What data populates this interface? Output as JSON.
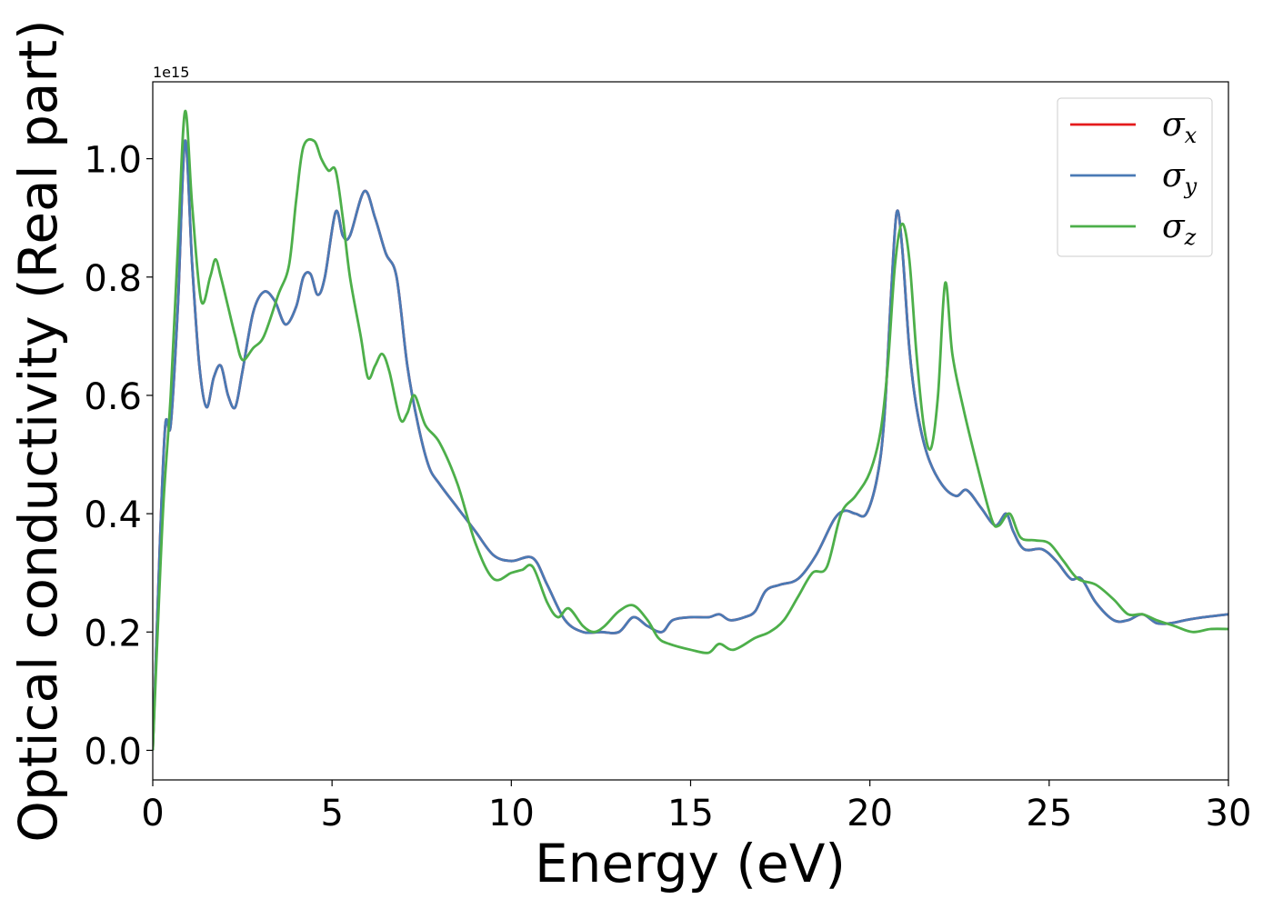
{
  "chart_data": {
    "type": "line",
    "xlabel": "Energy (eV)",
    "ylabel": "Optical conductivity (Real part)",
    "y_offset_label": "1e15",
    "xlim": [
      0,
      30
    ],
    "ylim": [
      -0.05,
      1.13
    ],
    "x_ticks": [
      0,
      5,
      10,
      15,
      20,
      25,
      30
    ],
    "x_tick_labels": [
      "0",
      "5",
      "10",
      "15",
      "20",
      "25",
      "30"
    ],
    "y_ticks": [
      0.0,
      0.2,
      0.4,
      0.6,
      0.8,
      1.0
    ],
    "y_tick_labels": [
      "0.0",
      "0.2",
      "0.4",
      "0.6",
      "0.8",
      "1.0"
    ],
    "grid": false,
    "legend_position": "top-right",
    "series": [
      {
        "name": "σx",
        "label_base": "σ",
        "label_sub": "x",
        "color": "#e41a1c",
        "x": [
          0,
          0.2,
          0.35,
          0.5,
          0.7,
          0.9,
          1.1,
          1.3,
          1.5,
          1.7,
          1.9,
          2.1,
          2.3,
          2.5,
          2.8,
          3.1,
          3.4,
          3.7,
          4.0,
          4.2,
          4.4,
          4.6,
          4.8,
          5.1,
          5.3,
          5.5,
          5.9,
          6.2,
          6.5,
          6.8,
          7.1,
          7.4,
          7.7,
          8.0,
          8.5,
          9.0,
          9.5,
          10.0,
          10.6,
          11.0,
          11.5,
          12.0,
          12.5,
          13.0,
          13.4,
          13.8,
          14.2,
          14.5,
          15.0,
          15.5,
          15.8,
          16.1,
          16.5,
          16.8,
          17.1,
          17.5,
          18.0,
          18.5,
          19.0,
          19.3,
          19.6,
          19.9,
          20.2,
          20.4,
          20.6,
          20.75,
          20.9,
          21.1,
          21.3,
          21.6,
          22.0,
          22.4,
          22.7,
          23.1,
          23.5,
          23.8,
          24.0,
          24.3,
          24.8,
          25.2,
          25.6,
          25.9,
          26.3,
          26.8,
          27.2,
          27.6,
          28.0,
          28.4,
          28.8,
          29.3,
          30.0
        ],
        "y": [
          0.0,
          0.35,
          0.55,
          0.55,
          0.75,
          1.03,
          0.82,
          0.65,
          0.58,
          0.63,
          0.65,
          0.6,
          0.58,
          0.64,
          0.74,
          0.775,
          0.76,
          0.72,
          0.75,
          0.8,
          0.805,
          0.77,
          0.8,
          0.91,
          0.87,
          0.87,
          0.945,
          0.9,
          0.84,
          0.8,
          0.65,
          0.55,
          0.48,
          0.45,
          0.41,
          0.37,
          0.33,
          0.32,
          0.325,
          0.28,
          0.22,
          0.2,
          0.2,
          0.2,
          0.225,
          0.21,
          0.2,
          0.22,
          0.225,
          0.225,
          0.23,
          0.22,
          0.225,
          0.235,
          0.27,
          0.28,
          0.29,
          0.33,
          0.39,
          0.405,
          0.4,
          0.4,
          0.46,
          0.56,
          0.78,
          0.91,
          0.85,
          0.68,
          0.58,
          0.5,
          0.45,
          0.43,
          0.44,
          0.41,
          0.38,
          0.4,
          0.37,
          0.34,
          0.34,
          0.32,
          0.29,
          0.29,
          0.25,
          0.22,
          0.22,
          0.23,
          0.215,
          0.215,
          0.22,
          0.225,
          0.23
        ]
      },
      {
        "name": "σy",
        "label_base": "σ",
        "label_sub": "y",
        "color": "#4a7ab5",
        "x": [
          0,
          0.2,
          0.35,
          0.5,
          0.7,
          0.9,
          1.1,
          1.3,
          1.5,
          1.7,
          1.9,
          2.1,
          2.3,
          2.5,
          2.8,
          3.1,
          3.4,
          3.7,
          4.0,
          4.2,
          4.4,
          4.6,
          4.8,
          5.1,
          5.3,
          5.5,
          5.9,
          6.2,
          6.5,
          6.8,
          7.1,
          7.4,
          7.7,
          8.0,
          8.5,
          9.0,
          9.5,
          10.0,
          10.6,
          11.0,
          11.5,
          12.0,
          12.5,
          13.0,
          13.4,
          13.8,
          14.2,
          14.5,
          15.0,
          15.5,
          15.8,
          16.1,
          16.5,
          16.8,
          17.1,
          17.5,
          18.0,
          18.5,
          19.0,
          19.3,
          19.6,
          19.9,
          20.2,
          20.4,
          20.6,
          20.75,
          20.9,
          21.1,
          21.3,
          21.6,
          22.0,
          22.4,
          22.7,
          23.1,
          23.5,
          23.8,
          24.0,
          24.3,
          24.8,
          25.2,
          25.6,
          25.9,
          26.3,
          26.8,
          27.2,
          27.6,
          28.0,
          28.4,
          28.8,
          29.3,
          30.0
        ],
        "y": [
          0.0,
          0.35,
          0.55,
          0.55,
          0.75,
          1.03,
          0.82,
          0.65,
          0.58,
          0.63,
          0.65,
          0.6,
          0.58,
          0.64,
          0.74,
          0.775,
          0.76,
          0.72,
          0.75,
          0.8,
          0.805,
          0.77,
          0.8,
          0.91,
          0.87,
          0.87,
          0.945,
          0.9,
          0.84,
          0.8,
          0.65,
          0.55,
          0.48,
          0.45,
          0.41,
          0.37,
          0.33,
          0.32,
          0.325,
          0.28,
          0.22,
          0.2,
          0.2,
          0.2,
          0.225,
          0.21,
          0.2,
          0.22,
          0.225,
          0.225,
          0.23,
          0.22,
          0.225,
          0.235,
          0.27,
          0.28,
          0.29,
          0.33,
          0.39,
          0.405,
          0.4,
          0.4,
          0.46,
          0.56,
          0.78,
          0.91,
          0.85,
          0.68,
          0.58,
          0.5,
          0.45,
          0.43,
          0.44,
          0.41,
          0.38,
          0.4,
          0.37,
          0.34,
          0.34,
          0.32,
          0.29,
          0.29,
          0.25,
          0.22,
          0.22,
          0.23,
          0.215,
          0.215,
          0.22,
          0.225,
          0.23
        ]
      },
      {
        "name": "σz",
        "label_base": "σ",
        "label_sub": "z",
        "color": "#4daf4a",
        "x": [
          0,
          0.15,
          0.3,
          0.5,
          0.7,
          0.9,
          1.1,
          1.35,
          1.6,
          1.75,
          1.9,
          2.1,
          2.3,
          2.5,
          2.8,
          3.1,
          3.5,
          3.8,
          4.0,
          4.2,
          4.5,
          4.7,
          4.9,
          5.1,
          5.3,
          5.5,
          5.8,
          6.0,
          6.2,
          6.4,
          6.6,
          6.9,
          7.1,
          7.3,
          7.6,
          8.0,
          8.5,
          9.0,
          9.5,
          10.0,
          10.3,
          10.6,
          11.0,
          11.3,
          11.6,
          12.0,
          12.3,
          12.6,
          13.0,
          13.4,
          13.8,
          14.1,
          14.4,
          15.0,
          15.5,
          15.8,
          16.2,
          16.8,
          17.2,
          17.6,
          18.0,
          18.4,
          18.8,
          19.2,
          19.6,
          20.0,
          20.3,
          20.5,
          20.7,
          20.9,
          21.1,
          21.3,
          21.5,
          21.7,
          21.9,
          22.1,
          22.3,
          22.6,
          23.0,
          23.4,
          23.6,
          23.9,
          24.2,
          24.6,
          25.0,
          25.4,
          25.8,
          26.3,
          26.8,
          27.2,
          27.6,
          28.0,
          28.5,
          29.0,
          29.5,
          30.0
        ],
        "y": [
          0.0,
          0.22,
          0.42,
          0.6,
          0.85,
          1.08,
          0.92,
          0.76,
          0.8,
          0.83,
          0.8,
          0.75,
          0.7,
          0.66,
          0.68,
          0.7,
          0.77,
          0.82,
          0.93,
          1.02,
          1.03,
          1.0,
          0.98,
          0.98,
          0.9,
          0.8,
          0.7,
          0.63,
          0.65,
          0.67,
          0.64,
          0.56,
          0.57,
          0.6,
          0.55,
          0.52,
          0.45,
          0.35,
          0.29,
          0.3,
          0.305,
          0.31,
          0.25,
          0.225,
          0.24,
          0.21,
          0.2,
          0.21,
          0.235,
          0.245,
          0.22,
          0.19,
          0.18,
          0.17,
          0.165,
          0.18,
          0.17,
          0.19,
          0.2,
          0.22,
          0.26,
          0.3,
          0.31,
          0.4,
          0.43,
          0.47,
          0.54,
          0.65,
          0.82,
          0.89,
          0.83,
          0.67,
          0.55,
          0.51,
          0.6,
          0.79,
          0.67,
          0.58,
          0.48,
          0.39,
          0.38,
          0.4,
          0.36,
          0.355,
          0.35,
          0.32,
          0.29,
          0.28,
          0.255,
          0.23,
          0.23,
          0.22,
          0.21,
          0.2,
          0.205,
          0.205
        ]
      }
    ]
  }
}
